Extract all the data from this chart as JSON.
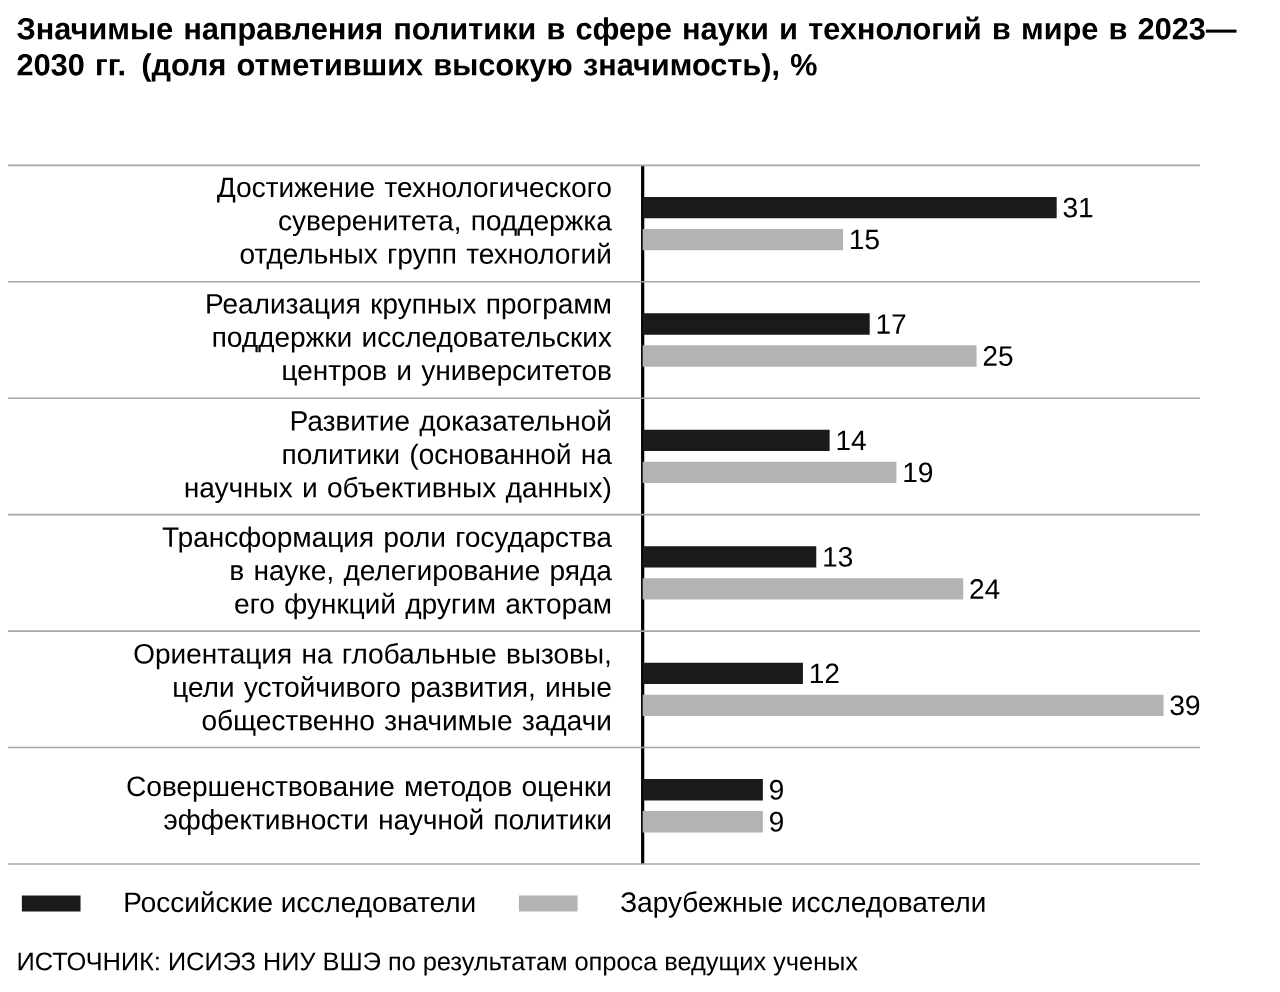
{
  "chart_data": {
    "type": "bar",
    "orientation": "horizontal",
    "title": "Значимые направления политики в сфере науки и технологий в мире в 2023—2030 гг. (доля отметивших высокую значимость), %",
    "categories": [
      "Достижение технологического суверенитета, поддержка отдельных групп технологий",
      "Реализация крупных программ поддержки исследовательских центров и университетов",
      "Развитие доказательной политики (основанной на научных и объективных данных)",
      "Трансформация роли государства в науке, делегирование ряда его функций другим акторам",
      "Ориентация на глобальные вызовы, цели устойчивого развития, иные общественно значимые задачи",
      "Совершенствование методов оценки эффективности научной политики"
    ],
    "series": [
      {
        "name": "Российские исследователи",
        "color": "#1a1a1a",
        "values": [
          31,
          17,
          14,
          13,
          12,
          9
        ]
      },
      {
        "name": "Зарубежные исследователи",
        "color": "#b3b3b3",
        "values": [
          15,
          25,
          19,
          24,
          39,
          9
        ]
      }
    ],
    "data_labels": true,
    "legend": "bottom",
    "annotations": [
      "ИСТОЧНИК: ИСИЭЗ НИУ ВШЭ по результатам опроса ведущих ученых"
    ]
  }
}
